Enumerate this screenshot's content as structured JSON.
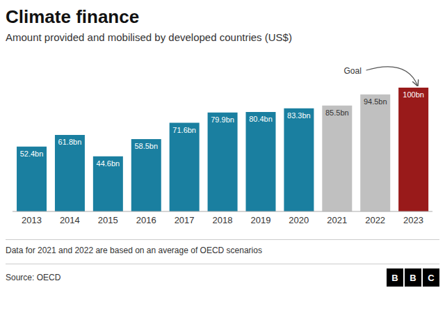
{
  "chart_data": {
    "type": "bar",
    "title": "Climate finance",
    "subtitle": "Amount provided and mobilised by developed countries (US$)",
    "categories": [
      "2013",
      "2014",
      "2015",
      "2016",
      "2017",
      "2018",
      "2019",
      "2020",
      "2021",
      "2022",
      "2023"
    ],
    "values": [
      52.4,
      61.8,
      44.6,
      58.5,
      71.6,
      79.9,
      80.4,
      83.3,
      85.5,
      94.5,
      100
    ],
    "value_labels": [
      "52.4bn",
      "61.8bn",
      "44.6bn",
      "58.5bn",
      "71.6bn",
      "79.9bn",
      "80.4bn",
      "83.3bn",
      "85.5bn",
      "94.5bn",
      "100bn"
    ],
    "colors": [
      "#1a7fa0",
      "#1a7fa0",
      "#1a7fa0",
      "#1a7fa0",
      "#1a7fa0",
      "#1a7fa0",
      "#1a7fa0",
      "#1a7fa0",
      "#c0c0c0",
      "#c0c0c0",
      "#991a1a"
    ],
    "data_labels": true,
    "ylim": [
      0,
      118
    ],
    "tick_labels": "x",
    "grid": false,
    "annotations": [
      {
        "text": "Goal",
        "x": "2023"
      }
    ],
    "footnote": "Data for 2021 and 2022 are based on an average of OECD scenarios",
    "source": "Source: OECD",
    "logo": [
      "B",
      "B",
      "C"
    ]
  }
}
